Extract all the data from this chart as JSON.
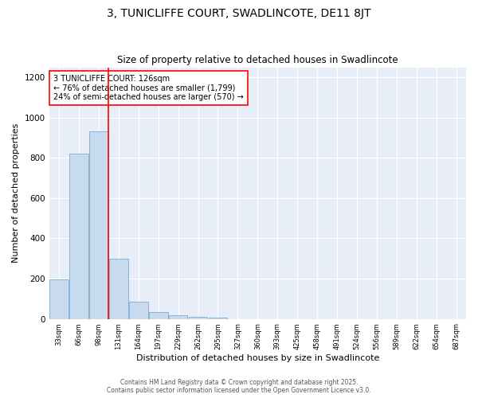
{
  "title": "3, TUNICLIFFE COURT, SWADLINCOTE, DE11 8JT",
  "subtitle": "Size of property relative to detached houses in Swadlincote",
  "xlabel": "Distribution of detached houses by size in Swadlincote",
  "ylabel": "Number of detached properties",
  "bins": [
    "33sqm",
    "66sqm",
    "98sqm",
    "131sqm",
    "164sqm",
    "197sqm",
    "229sqm",
    "262sqm",
    "295sqm",
    "327sqm",
    "360sqm",
    "393sqm",
    "425sqm",
    "458sqm",
    "491sqm",
    "524sqm",
    "556sqm",
    "589sqm",
    "622sqm",
    "654sqm",
    "687sqm"
  ],
  "values": [
    195,
    820,
    930,
    300,
    85,
    35,
    18,
    10,
    8,
    0,
    0,
    0,
    0,
    0,
    0,
    0,
    0,
    0,
    0,
    0,
    0
  ],
  "bar_color": "#c8daee",
  "bar_edge_color": "#7aaed4",
  "red_line_bin_index": 3,
  "annotation_line1": "3 TUNICLIFFE COURT: 126sqm",
  "annotation_line2": "← 76% of detached houses are smaller (1,799)",
  "annotation_line3": "24% of semi-detached houses are larger (570) →",
  "ylim": [
    0,
    1250
  ],
  "yticks": [
    0,
    200,
    400,
    600,
    800,
    1000,
    1200
  ],
  "footer1": "Contains HM Land Registry data © Crown copyright and database right 2025.",
  "footer2": "Contains public sector information licensed under the Open Government Licence v3.0.",
  "title_fontsize": 10,
  "subtitle_fontsize": 8.5,
  "xlabel_fontsize": 8,
  "ylabel_fontsize": 8,
  "bg_color": "#ffffff",
  "plot_bg_color": "#e8eef8"
}
